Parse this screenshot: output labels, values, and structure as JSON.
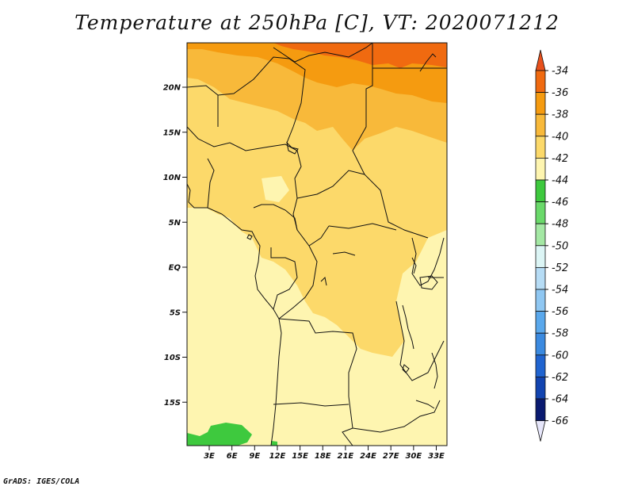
{
  "title": "Temperature at 250hPa [C], VT: 2020071212",
  "credit": "GrADS: IGES/COLA",
  "map": {
    "lat_labels": [
      "20N",
      "15N",
      "10N",
      "5N",
      "EQ",
      "5S",
      "10S",
      "15S"
    ],
    "lon_labels": [
      "3E",
      "6E",
      "9E",
      "12E",
      "15E",
      "18E",
      "21E",
      "24E",
      "27E",
      "30E",
      "33E"
    ],
    "lat_range": [
      -20,
      25
    ],
    "lon_range": [
      0,
      35
    ]
  },
  "colorbar": {
    "labels": [
      "-34",
      "-36",
      "-38",
      "-40",
      "-42",
      "-44",
      "-46",
      "-48",
      "-50",
      "-52",
      "-54",
      "-56",
      "-58",
      "-60",
      "-62",
      "-64",
      "-66"
    ],
    "colors": [
      "#e8501c",
      "#f06a10",
      "#f59b10",
      "#f8b93a",
      "#fcd96a",
      "#fef5b0",
      "#3ec93e",
      "#6ad96a",
      "#a4e8a4",
      "#dcf5f5",
      "#b6dcf5",
      "#8fc7f2",
      "#5aa8ec",
      "#3b8ae0",
      "#2064d0",
      "#1244b0",
      "#0a1a70",
      "#e6e6fa"
    ]
  },
  "legend_colors": {
    "land_default": "#fef5b0",
    "light_yellow": "#fde28e",
    "yellow": "#fcd96a",
    "light_orange": "#f8b93a",
    "orange": "#f59b10",
    "dark_orange": "#f06a10",
    "green": "#3ec93e"
  }
}
